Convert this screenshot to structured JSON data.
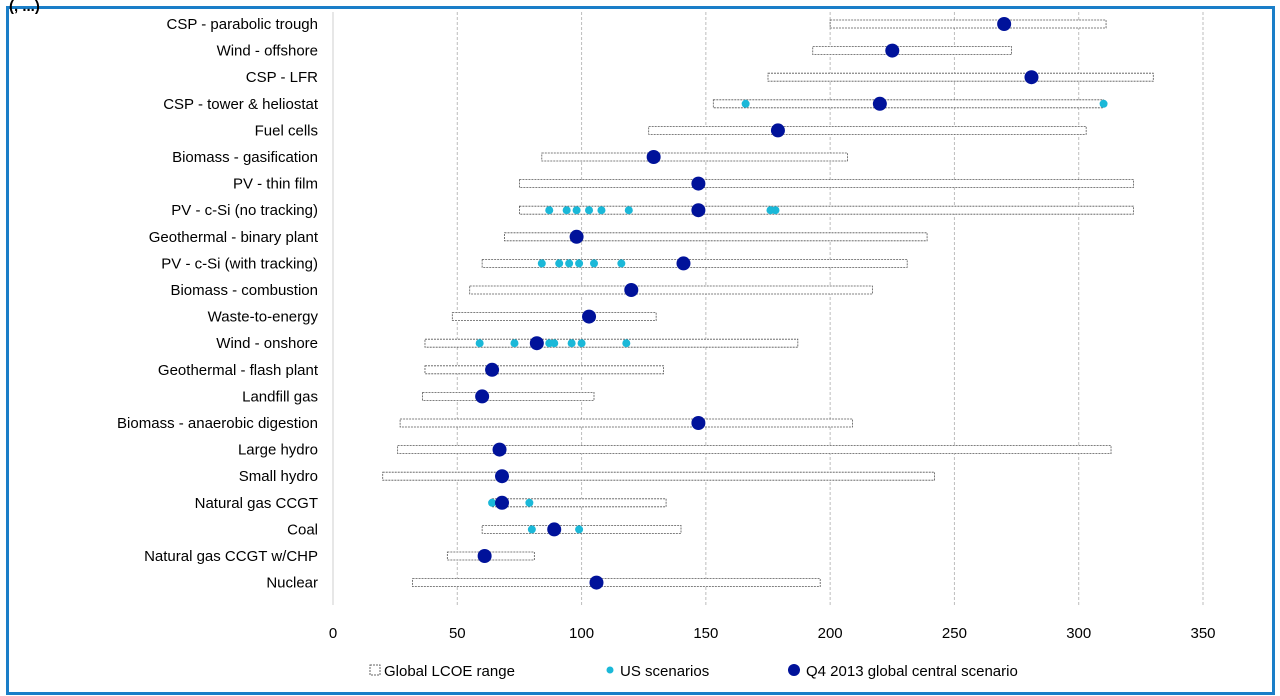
{
  "header": {
    "cropped_title": "(, ...)"
  },
  "chart_data": {
    "type": "range-dot",
    "x_ticks": [
      0,
      50,
      100,
      150,
      200,
      250,
      300,
      350
    ],
    "xlim": [
      0,
      350
    ],
    "grid": "vertical dashed",
    "legend_position": "bottom",
    "legend": {
      "range_label": "Global LCOE range",
      "us_label": "US scenarios",
      "central_label": "Q4 2013 global central scenario"
    },
    "colors": {
      "range_border": "#555555",
      "us": "#1ab8d8",
      "central": "#00129a",
      "frame": "#1a7ec8",
      "grid": "#bdbdbd"
    },
    "categories": [
      {
        "label": "CSP - parabolic trough",
        "range": [
          200,
          311
        ],
        "central": 270,
        "us": []
      },
      {
        "label": "Wind - offshore",
        "range": [
          193,
          273
        ],
        "central": 225,
        "us": []
      },
      {
        "label": "CSP - LFR",
        "range": [
          175,
          330
        ],
        "central": 281,
        "us": []
      },
      {
        "label": "CSP - tower & heliostat",
        "range": [
          153,
          310
        ],
        "central": 220,
        "us": [
          166,
          310
        ]
      },
      {
        "label": "Fuel cells",
        "range": [
          127,
          303
        ],
        "central": 179,
        "us": []
      },
      {
        "label": "Biomass - gasification",
        "range": [
          84,
          207
        ],
        "central": 129,
        "us": []
      },
      {
        "label": "PV - thin film",
        "range": [
          75,
          322
        ],
        "central": 147,
        "us": []
      },
      {
        "label": "PV - c-Si (no tracking)",
        "range": [
          75,
          322
        ],
        "central": 147,
        "us": [
          87,
          94,
          98,
          103,
          108,
          119,
          176,
          178
        ]
      },
      {
        "label": "Geothermal - binary plant",
        "range": [
          69,
          239
        ],
        "central": 98,
        "us": []
      },
      {
        "label": "PV - c-Si (with tracking)",
        "range": [
          60,
          231
        ],
        "central": 141,
        "us": [
          84,
          91,
          95,
          99,
          105,
          116
        ]
      },
      {
        "label": "Biomass - combustion",
        "range": [
          55,
          217
        ],
        "central": 120,
        "us": []
      },
      {
        "label": "Waste-to-energy",
        "range": [
          48,
          130
        ],
        "central": 103,
        "us": []
      },
      {
        "label": "Wind - onshore",
        "range": [
          37,
          187
        ],
        "central": 82,
        "us": [
          59,
          73,
          87,
          89,
          96,
          100,
          118
        ]
      },
      {
        "label": "Geothermal - flash plant",
        "range": [
          37,
          133
        ],
        "central": 64,
        "us": []
      },
      {
        "label": "Landfill gas",
        "range": [
          36,
          105
        ],
        "central": 60,
        "us": []
      },
      {
        "label": "Biomass - anaerobic digestion",
        "range": [
          27,
          209
        ],
        "central": 147,
        "us": []
      },
      {
        "label": "Large hydro",
        "range": [
          26,
          313
        ],
        "central": 67,
        "us": []
      },
      {
        "label": "Small hydro",
        "range": [
          20,
          242
        ],
        "central": 68,
        "us": []
      },
      {
        "label": "Natural gas CCGT",
        "range": [
          64,
          134
        ],
        "central": 68,
        "us": [
          64,
          79
        ]
      },
      {
        "label": "Coal",
        "range": [
          60,
          140
        ],
        "central": 89,
        "us": [
          80,
          99
        ]
      },
      {
        "label": "Natural gas CCGT w/CHP",
        "range": [
          46,
          81
        ],
        "central": 61,
        "us": []
      },
      {
        "label": "Nuclear",
        "range": [
          32,
          196
        ],
        "central": 106,
        "us": []
      }
    ]
  }
}
